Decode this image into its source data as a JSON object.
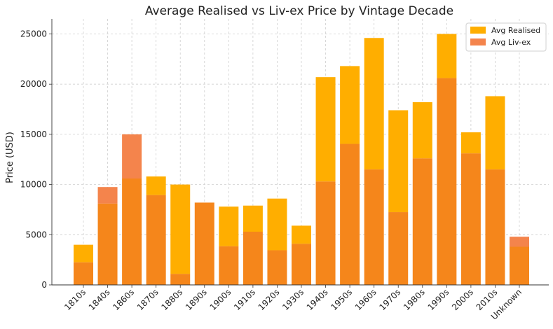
{
  "chart_data": {
    "type": "bar",
    "title": "Average Realised vs Liv-ex Price by Vintage Decade",
    "xlabel": "",
    "ylabel": "Price (USD)",
    "ylim": [
      0,
      26500
    ],
    "yticks": [
      0,
      5000,
      10000,
      15000,
      20000,
      25000
    ],
    "grid": true,
    "legend_position": "top-right",
    "categories": [
      "1810s",
      "1840s",
      "1860s",
      "1870s",
      "1880s",
      "1890s",
      "1900s",
      "1910s",
      "1920s",
      "1930s",
      "1940s",
      "1950s",
      "1960s",
      "1970s",
      "1980s",
      "1990s",
      "2000s",
      "2010s",
      "Unknown"
    ],
    "series": [
      {
        "name": "Avg Realised",
        "color": "#FFAE00",
        "values": [
          4000,
          8100,
          10600,
          10800,
          10000,
          8200,
          7800,
          7900,
          8600,
          5900,
          20700,
          21800,
          24600,
          17400,
          18200,
          25000,
          15200,
          18800,
          3800
        ]
      },
      {
        "name": "Avg Liv-ex",
        "color": "#F4844C",
        "values": [
          2250,
          9750,
          15000,
          8950,
          1100,
          8200,
          3850,
          5300,
          3450,
          4100,
          10300,
          14050,
          11500,
          7250,
          12600,
          20600,
          13100,
          11500,
          4800
        ]
      }
    ]
  }
}
